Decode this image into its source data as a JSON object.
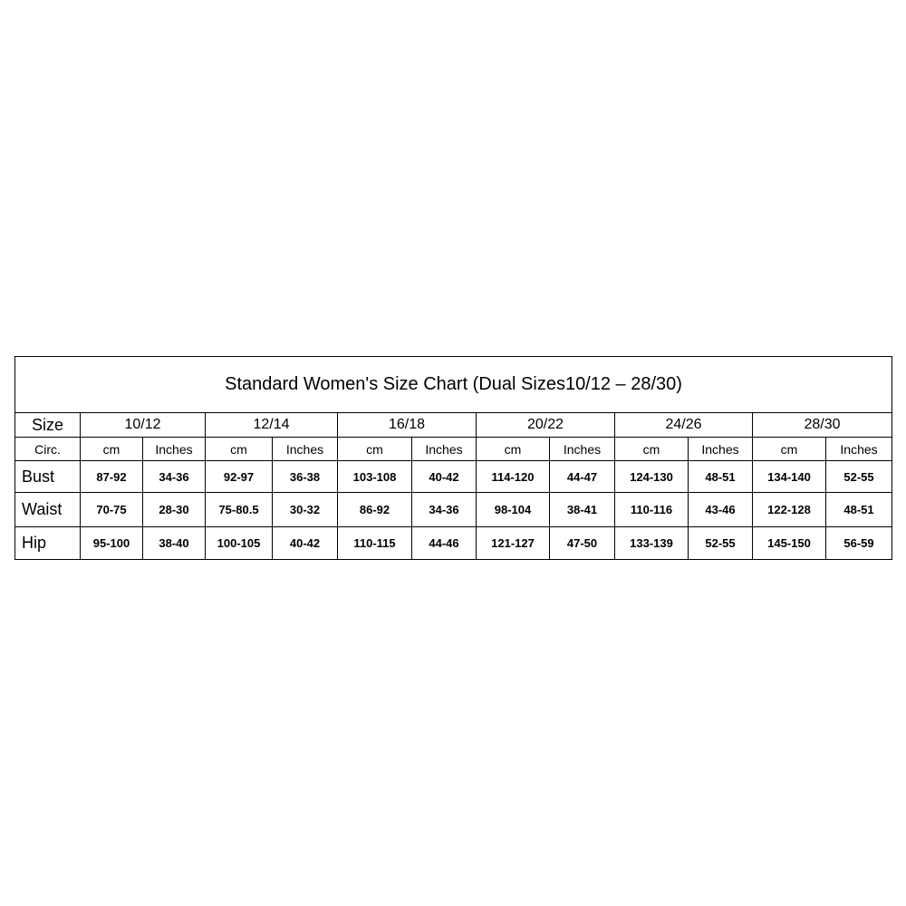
{
  "title": "Standard Women's Size Chart (Dual Sizes10/12 – 28/30)",
  "size_label": "Size",
  "circ_label": "Circ.",
  "sizes": [
    "10/12",
    "12/14",
    "16/18",
    "20/22",
    "24/26",
    "28/30"
  ],
  "units": [
    "cm",
    "Inches"
  ],
  "rows": [
    {
      "label": "Bust",
      "values": [
        "87-92",
        "34-36",
        "92-97",
        "36-38",
        "103-108",
        "40-42",
        "114-120",
        "44-47",
        "124-130",
        "48-51",
        "134-140",
        "52-55"
      ]
    },
    {
      "label": "Waist",
      "values": [
        "70-75",
        "28-30",
        "75-80.5",
        "30-32",
        "86-92",
        "34-36",
        "98-104",
        "38-41",
        "110-116",
        "43-46",
        "122-128",
        "48-51"
      ]
    },
    {
      "label": "Hip",
      "values": [
        "95-100",
        "38-40",
        "100-105",
        "40-42",
        "110-115",
        "44-46",
        "121-127",
        "47-50",
        "133-139",
        "52-55",
        "145-150",
        "56-59"
      ]
    }
  ]
}
